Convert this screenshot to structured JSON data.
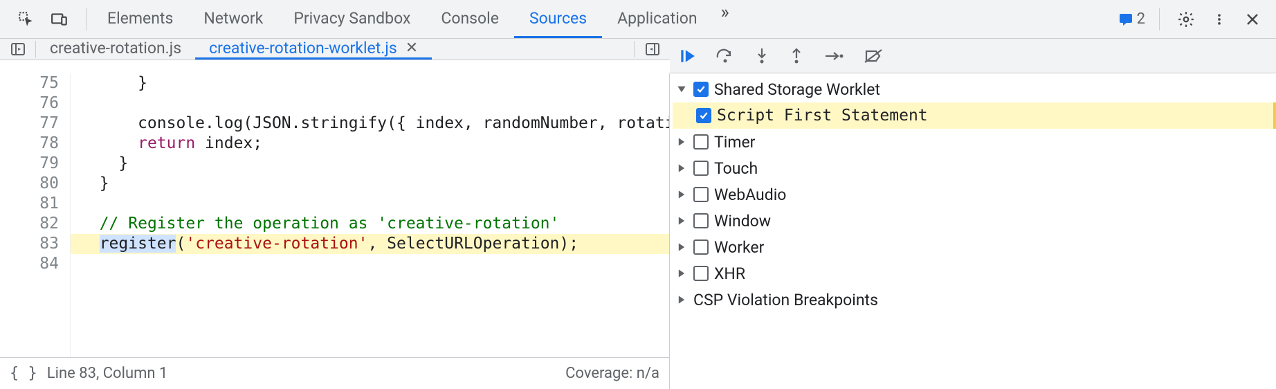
{
  "top_tabs": {
    "items": [
      "Elements",
      "Network",
      "Privacy Sandbox",
      "Console",
      "Sources",
      "Application"
    ],
    "active_index": 4
  },
  "messages": {
    "count": "2"
  },
  "file_tabs": {
    "items": [
      {
        "name": "creative-rotation.js",
        "closable": false
      },
      {
        "name": "creative-rotation-worklet.js",
        "closable": true
      }
    ],
    "active_index": 1
  },
  "editor": {
    "line_start": 75,
    "highlight_line": 83,
    "lines": [
      {
        "n": 75,
        "tokens": [
          {
            "t": "      }",
            "c": ""
          }
        ]
      },
      {
        "n": 76,
        "tokens": [
          {
            "t": "",
            "c": ""
          }
        ]
      },
      {
        "n": 77,
        "tokens": [
          {
            "t": "      console.log(JSON.stringify({ index, randomNumber, rotati",
            "c": ""
          }
        ]
      },
      {
        "n": 78,
        "tokens": [
          {
            "t": "      ",
            "c": ""
          },
          {
            "t": "return",
            "c": "kw"
          },
          {
            "t": " index;",
            "c": ""
          }
        ]
      },
      {
        "n": 79,
        "tokens": [
          {
            "t": "    }",
            "c": ""
          }
        ]
      },
      {
        "n": 80,
        "tokens": [
          {
            "t": "  }",
            "c": ""
          }
        ]
      },
      {
        "n": 81,
        "tokens": [
          {
            "t": "",
            "c": ""
          }
        ]
      },
      {
        "n": 82,
        "tokens": [
          {
            "t": "  ",
            "c": ""
          },
          {
            "t": "// Register the operation as 'creative-rotation'",
            "c": "cm"
          }
        ]
      },
      {
        "n": 83,
        "tokens": [
          {
            "t": "  ",
            "c": ""
          },
          {
            "t": "register",
            "c": "sel-bg"
          },
          {
            "t": "(",
            "c": ""
          },
          {
            "t": "'creative-rotation'",
            "c": "str"
          },
          {
            "t": ", SelectURLOperation);",
            "c": ""
          }
        ]
      },
      {
        "n": 84,
        "tokens": [
          {
            "t": "",
            "c": ""
          }
        ]
      }
    ]
  },
  "status": {
    "position": "Line 83, Column 1",
    "coverage": "Coverage: n/a"
  },
  "breakpoints": {
    "parent": {
      "label": "Shared Storage Worklet",
      "checked": true,
      "expanded": true
    },
    "child": {
      "label": "Script First Statement",
      "checked": true
    },
    "others": [
      {
        "label": "Timer"
      },
      {
        "label": "Touch"
      },
      {
        "label": "WebAudio"
      },
      {
        "label": "Window"
      },
      {
        "label": "Worker"
      },
      {
        "label": "XHR"
      }
    ],
    "footer": {
      "label": "CSP Violation Breakpoints"
    }
  },
  "colors": {
    "accent": "#1a73e8",
    "highlight": "#fff8c5",
    "border": "#cacdd1",
    "muted": "#5f6368",
    "keyword": "#9a1b66",
    "comment": "#007400",
    "string": "#aa1111",
    "selection_bg": "#cfe3ff"
  }
}
